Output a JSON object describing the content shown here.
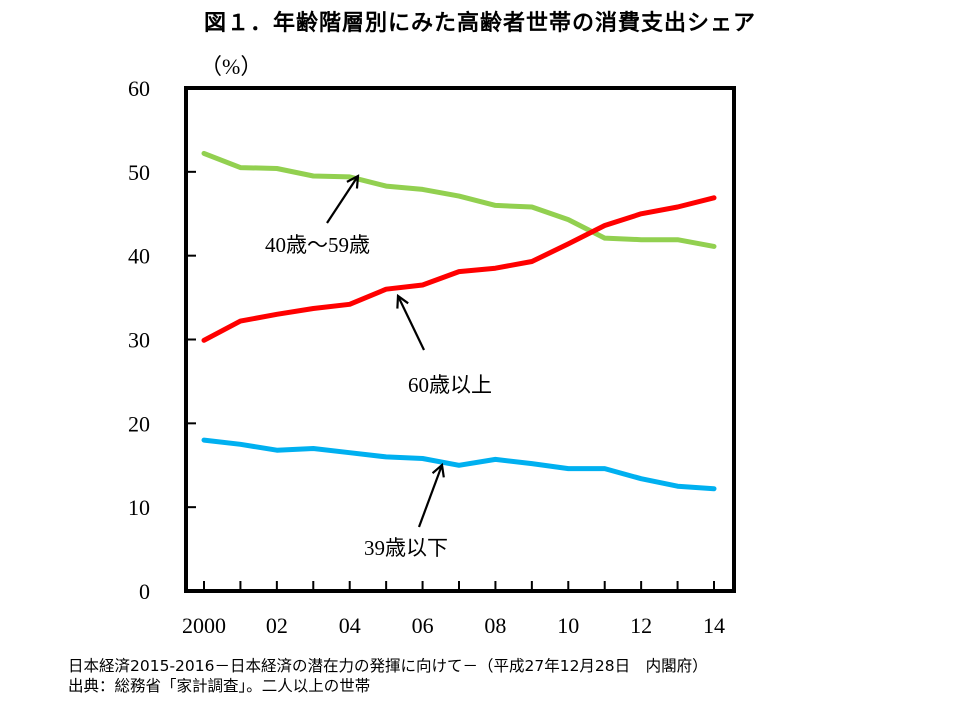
{
  "title": "図１．年齢階層別にみた高齢者世帯の消費支出シェア",
  "footer": {
    "line1": "日本経済2015-2016－日本経済の潜在力の発揮に向けて－（平成27年12月28日　内閣府）",
    "line2": "出典：総務省「家計調査」。二人以上の世帯"
  },
  "chart_data": {
    "type": "line",
    "ylabel": "（%）",
    "ylim": [
      0,
      60
    ],
    "y_ticks": [
      "0",
      "10",
      "20",
      "30",
      "40",
      "50",
      "60"
    ],
    "xlim": [
      2000,
      2014
    ],
    "x_ticks": [
      {
        "value": 2000,
        "label": "2000"
      },
      {
        "value": 2002,
        "label": "02"
      },
      {
        "value": 2004,
        "label": "04"
      },
      {
        "value": 2006,
        "label": "06"
      },
      {
        "value": 2008,
        "label": "08"
      },
      {
        "value": 2010,
        "label": "10"
      },
      {
        "value": 2012,
        "label": "12"
      },
      {
        "value": 2014,
        "label": "14"
      }
    ],
    "x": [
      2000,
      2001,
      2002,
      2003,
      2004,
      2005,
      2006,
      2007,
      2008,
      2009,
      2010,
      2011,
      2012,
      2013,
      2014
    ],
    "series": [
      {
        "name": "40歳～59歳",
        "color": "#92d050",
        "values": [
          52.2,
          50.5,
          50.4,
          49.5,
          49.4,
          48.3,
          47.9,
          47.1,
          46.0,
          45.8,
          44.3,
          42.1,
          41.9,
          41.9,
          41.1
        ]
      },
      {
        "name": "60歳以上",
        "color": "#ff0000",
        "values": [
          29.9,
          32.2,
          33.0,
          33.7,
          34.2,
          36.0,
          36.5,
          38.1,
          38.5,
          39.3,
          41.4,
          43.6,
          45.0,
          45.8,
          46.9
        ]
      },
      {
        "name": "39歳以下",
        "color": "#00b0f0",
        "values": [
          18.0,
          17.5,
          16.8,
          17.0,
          16.5,
          16.0,
          15.8,
          15.0,
          15.7,
          15.2,
          14.6,
          14.6,
          13.4,
          12.5,
          12.2
        ]
      }
    ],
    "annotations": [
      {
        "series": 0,
        "text": "40歳～59歳"
      },
      {
        "series": 1,
        "text": "60歳以上"
      },
      {
        "series": 2,
        "text": "39歳以下"
      }
    ],
    "grid": false,
    "legend": "none"
  }
}
